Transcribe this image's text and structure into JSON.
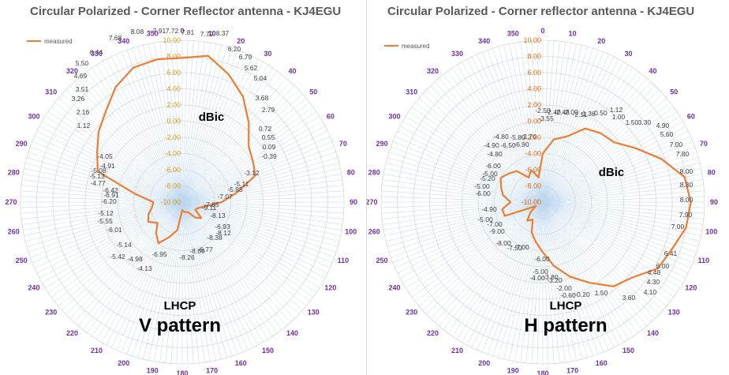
{
  "chart_data": [
    {
      "type": "radar",
      "title": "Circular Polarized - Corner Reflector antenna - KJ4EGU",
      "unit_label": "dBic",
      "polarization_label": "LHCP",
      "pattern_label": "V pattern",
      "legend": "measured",
      "rlim": [
        -10,
        10
      ],
      "radial_ticks": [
        "-10.00",
        "-8.00",
        "-6.00",
        "-4.00",
        "-2.00",
        "0.00",
        "2.00",
        "4.00",
        "6.00",
        "8.00",
        "10.00"
      ],
      "angle_ticks": [
        "0",
        "10",
        "20",
        "30",
        "40",
        "50",
        "60",
        "70",
        "80",
        "90",
        "100",
        "110",
        "120",
        "130",
        "140",
        "150",
        "160",
        "170",
        "180",
        "190",
        "200",
        "210",
        "220",
        "230",
        "240",
        "250",
        "260",
        "270",
        "280",
        "290",
        "300",
        "310",
        "320",
        "330",
        "340",
        "350"
      ],
      "series": [
        {
          "name": "measured",
          "angles": [
            0,
            10,
            20,
            30,
            40,
            50,
            60,
            70,
            80,
            90,
            100,
            110,
            120,
            130,
            140,
            150,
            160,
            170,
            180,
            190,
            200,
            210,
            220,
            230,
            240,
            250,
            260,
            270,
            280,
            290,
            300,
            310,
            320,
            330,
            340,
            350
          ],
          "values": [
            7.81,
            8.37,
            6.79,
            5.04,
            2.79,
            0.72,
            0.09,
            -0.39,
            -3.12,
            -5.11,
            -7.07,
            -7.88,
            -8.13,
            -6.93,
            -7.5,
            -8.58,
            -8.67,
            -8.78,
            -9.0,
            -6.5,
            -5.42,
            -4.13,
            -4.98,
            -6.01,
            -5.14,
            -5.55,
            -6.2,
            -6.42,
            -4.05,
            1.12,
            2.16,
            3.51,
            4.69,
            6.44,
            7.68,
            7.91
          ]
        }
      ],
      "point_labels": [
        "7.72",
        "7.81",
        "7.79",
        "8.37",
        "6.20",
        "6.79",
        "5.62",
        "5.04",
        "3.68",
        "2.79",
        "0.72",
        "0.55",
        "0.09",
        "-0.39",
        "-3.12",
        "-5.11",
        "-5.85",
        "-7.07",
        "-7.85",
        "-9.11",
        "-8.13",
        "-6.93",
        "-8.12",
        "-8.38",
        "-6.77",
        "-8.69",
        "-8.26",
        "-6.95",
        "-4.13",
        "-4.98",
        "-5.14",
        "-5.42",
        "-6.01",
        "-5.12",
        "-5.55",
        "-6.20",
        "-6.91",
        "-6.42",
        "-4.77",
        "-5.13",
        "-5.08",
        "-4.91",
        "-4.05",
        "1.12",
        "2.16",
        "3.26",
        "3.51",
        "4.69",
        "5.50",
        "6.44",
        "7.68",
        "8.08",
        "7.91"
      ]
    },
    {
      "type": "radar",
      "title": "Circular Polarized - Corner reflector antenna - KJ4EGU",
      "unit_label": "dBic",
      "polarization_label": "LHCP",
      "pattern_label": "H pattern",
      "legend": "measured",
      "rlim": [
        -10,
        10
      ],
      "radial_ticks": [
        "-10.00",
        "-8.00",
        "-6.00",
        "-4.00",
        "-2.00",
        "0.00",
        "2.00",
        "4.00",
        "6.00",
        "8.00",
        "10.00"
      ],
      "angle_ticks": [
        "0",
        "10",
        "20",
        "30",
        "40",
        "50",
        "60",
        "70",
        "80",
        "90",
        "100",
        "110",
        "120",
        "130",
        "140",
        "150",
        "160",
        "170",
        "180",
        "190",
        "200",
        "210",
        "220",
        "230",
        "240",
        "250",
        "260",
        "270",
        "280",
        "290",
        "300",
        "310",
        "320",
        "330",
        "340",
        "350"
      ],
      "series": [
        {
          "name": "measured",
          "angles": [
            0,
            10,
            20,
            30,
            40,
            50,
            60,
            70,
            80,
            90,
            100,
            110,
            120,
            130,
            140,
            150,
            160,
            170,
            180,
            190,
            200,
            210,
            220,
            230,
            240,
            250,
            260,
            270,
            280,
            290,
            300,
            310,
            320,
            330,
            340,
            350
          ],
          "values": [
            -4.0,
            -2.11,
            -1.38,
            0.5,
            1.12,
            1.5,
            3.3,
            5.6,
            7.8,
            8.3,
            8.0,
            7.0,
            6.41,
            4.48,
            3.6,
            1.5,
            -0.2,
            -2.0,
            -3.8,
            -5.0,
            -6.0,
            -7.5,
            -7.0,
            -8.0,
            -9.0,
            -5.0,
            -4.9,
            -6.0,
            -5.0,
            -4.5,
            -4.0,
            -4.5,
            -5.0,
            -6.5,
            -5.8,
            -6.9
          ]
        }
      ],
      "point_labels": [
        "-2.50",
        "-2.40",
        "-2.48",
        "-2.00",
        "-2.11",
        "-1.38",
        "-0.50",
        "1.12",
        "1.00",
        "1.50",
        "3.30",
        "4.90",
        "5.60",
        "7.00",
        "7.80",
        "8.00",
        "8.30",
        "8.00",
        "7.90",
        "7.00",
        "6.41",
        "6.00",
        "4.48",
        "4.30",
        "4.10",
        "3.60",
        "1.50",
        "-0.20",
        "-0.60",
        "-2.00",
        "-3.20",
        "-3.80",
        "-4.00",
        "-5.00",
        "-6.00",
        "-7.00",
        "-7.50",
        "-8.00",
        "-9.00",
        "-7.00",
        "-5.00",
        "-4.90",
        "-5.00",
        "-6.00",
        "-5.20",
        "-5.00",
        "-6.00",
        "-4.80",
        "-4.90",
        "-6.50",
        "-6.90",
        "-4.80",
        "-5.80",
        "-3.55",
        "-2.70"
      ]
    }
  ]
}
